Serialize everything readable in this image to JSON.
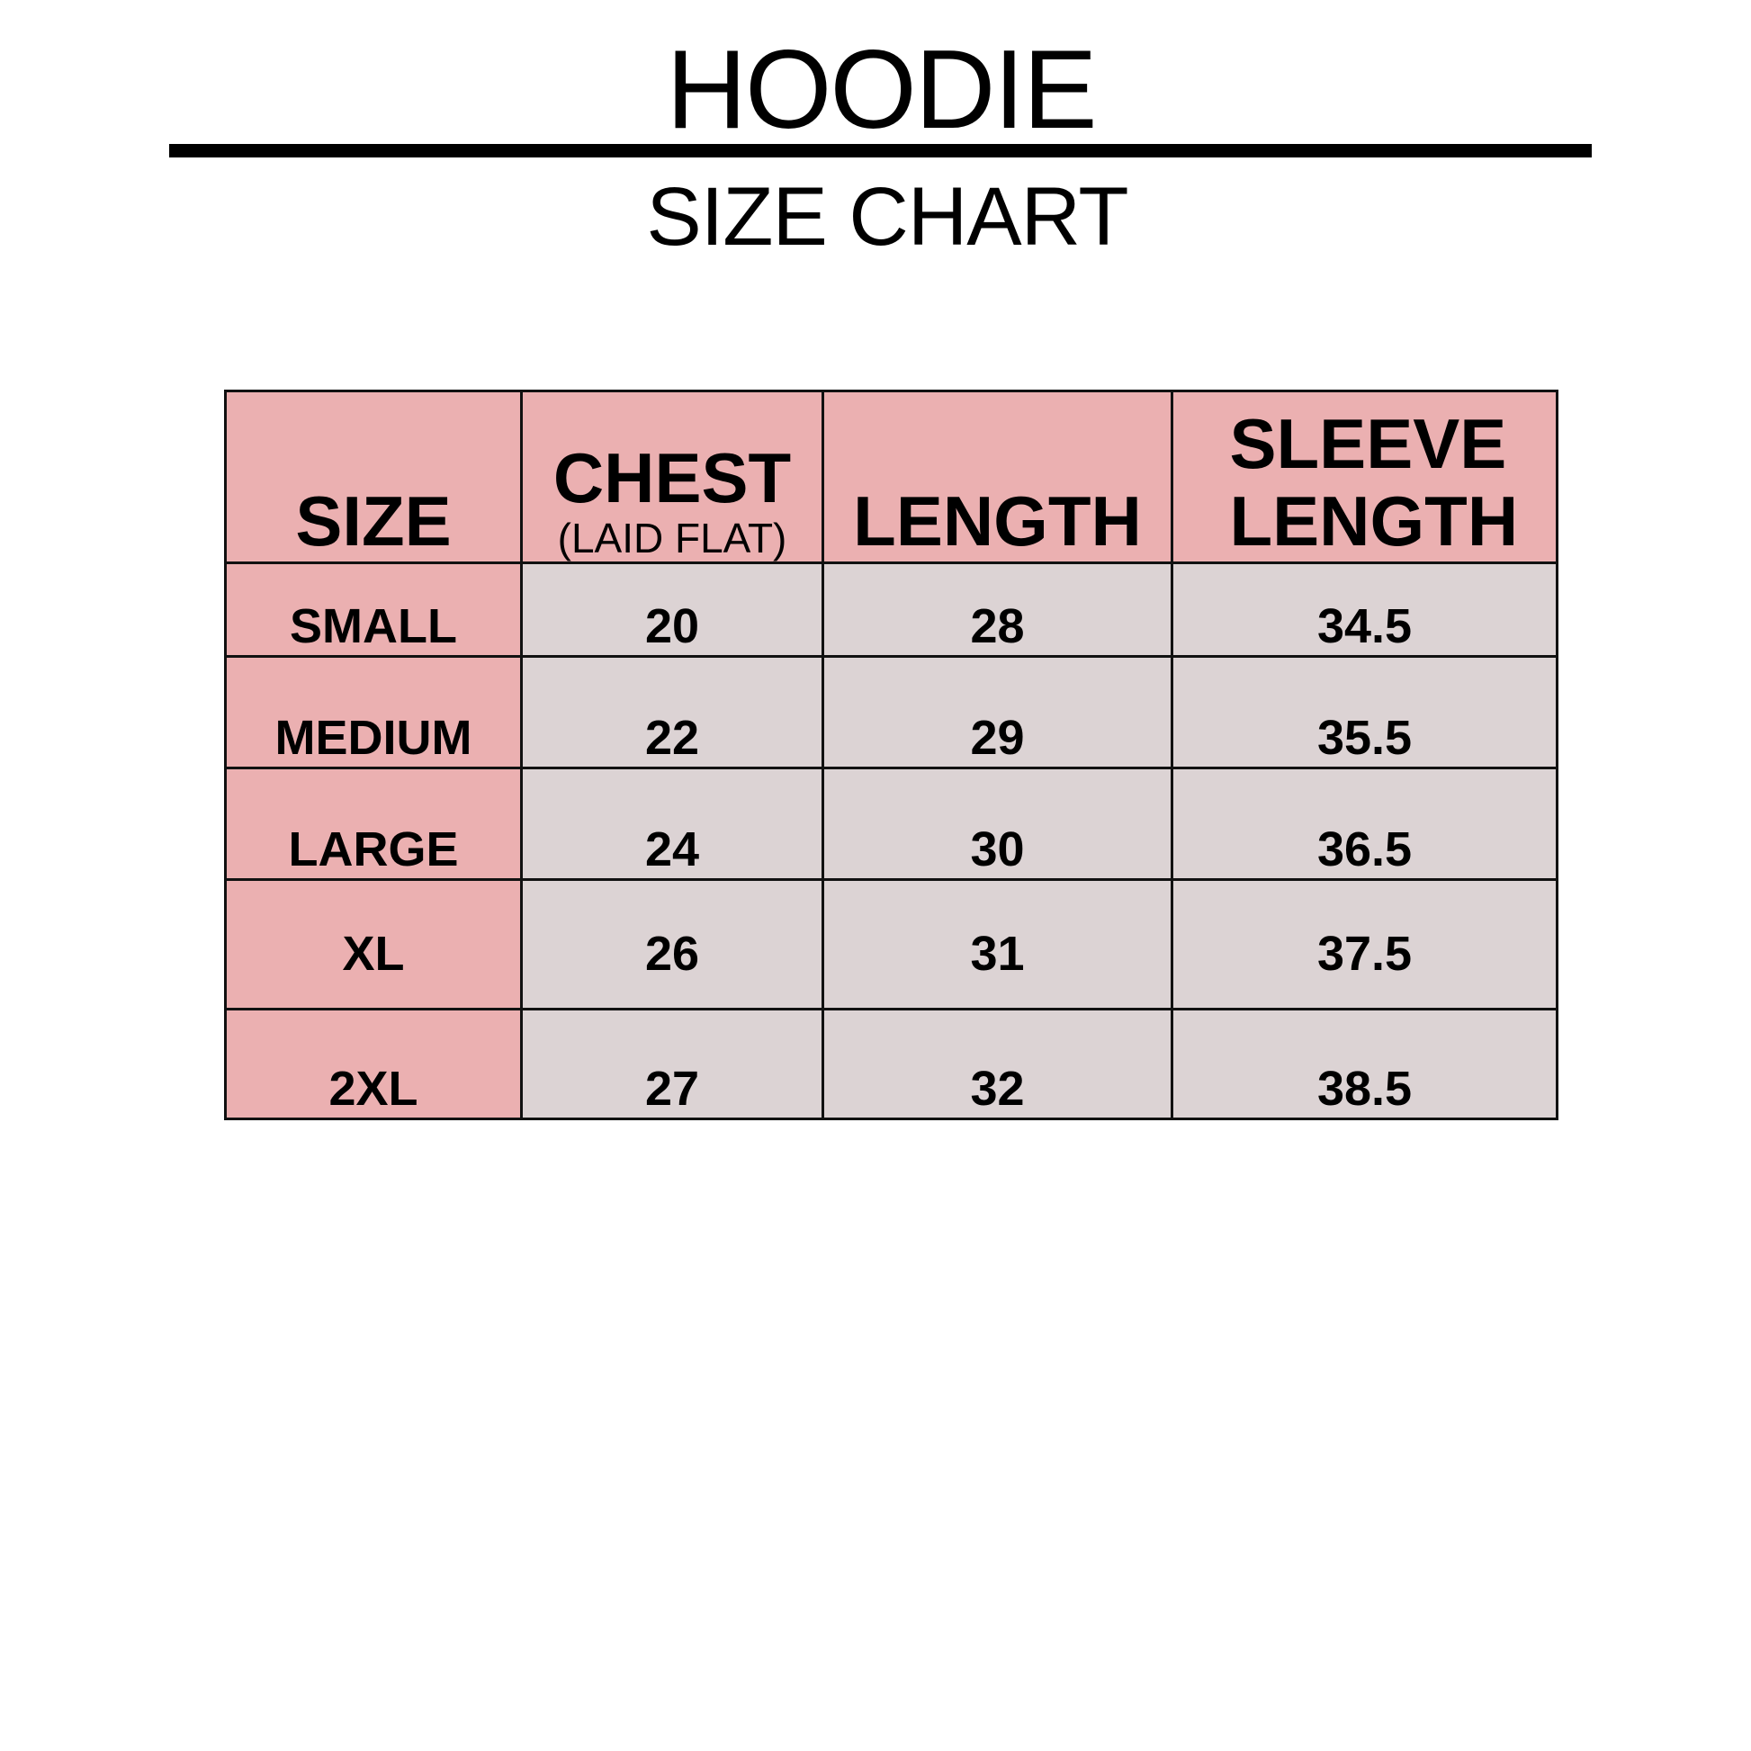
{
  "header": {
    "title": "HOODIE",
    "subtitle": "SIZE CHART"
  },
  "colors": {
    "header_fill": "#ebb0b1",
    "size_column_fill": "#ebb0b1",
    "value_fill": "#dcd3d4",
    "lines": "#000000"
  },
  "table": {
    "columns": [
      {
        "label": "SIZE",
        "sub": ""
      },
      {
        "label": "CHEST",
        "sub": "(LAID FLAT)"
      },
      {
        "label": "LENGTH",
        "sub": ""
      },
      {
        "label": "SLEEVE LENGTH",
        "sub": ""
      }
    ],
    "rows": [
      [
        "SMALL",
        "20",
        "28",
        "34.5"
      ],
      [
        "MEDIUM",
        "22",
        "29",
        "35.5"
      ],
      [
        "LARGE",
        "24",
        "30",
        "36.5"
      ],
      [
        "XL",
        "26",
        "31",
        "37.5"
      ],
      [
        "2XL",
        "27",
        "32",
        "38.5"
      ]
    ]
  }
}
